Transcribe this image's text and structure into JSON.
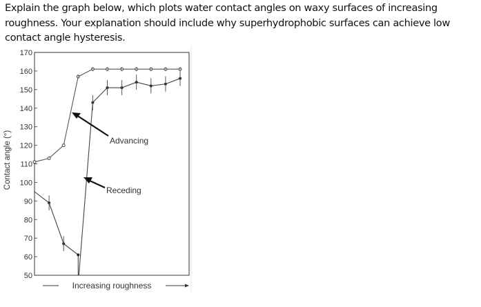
{
  "question": {
    "lines": [
      "Explain the graph below, which plots water contact angles on waxy surfaces of increasing",
      "roughness. Your explanation should include why superhydrophobic surfaces can achieve low",
      "contact angle hysteresis."
    ]
  },
  "chart_data": {
    "type": "line",
    "title": "",
    "xlabel": "Increasing roughness",
    "ylabel": "Contact angle (°)",
    "ylim": [
      50,
      170
    ],
    "yticks": [
      170,
      160,
      150,
      140,
      130,
      120,
      110,
      100,
      90,
      80,
      70,
      60,
      50
    ],
    "grid": false,
    "legend": "none (inline arrow annotations)",
    "x": [
      0,
      1,
      2,
      3,
      4,
      5,
      6,
      7,
      8,
      9,
      10
    ],
    "series": [
      {
        "name": "Advancing",
        "marker": "open diamond",
        "values": [
          111,
          113,
          120,
          157,
          161,
          161,
          161,
          161,
          161,
          161,
          161
        ]
      },
      {
        "name": "Receding",
        "marker": "filled circle with error bars",
        "values": [
          95,
          89,
          67,
          61,
          null,
          null,
          null,
          null,
          null,
          null,
          null
        ],
        "values_upper_branch": [
          null,
          null,
          null,
          null,
          143,
          151,
          151,
          154,
          152,
          153,
          156
        ],
        "note": "Receding curve drops to ~61°, falls vertically below 50, then jumps to ~143° and plateaus near 151–156°"
      }
    ],
    "annotations": [
      {
        "text": "Advancing",
        "points_to": "advancing curve near (3, 138)"
      },
      {
        "text": "Receding",
        "points_to": "receding curve rising segment near (4, 103)"
      }
    ]
  }
}
